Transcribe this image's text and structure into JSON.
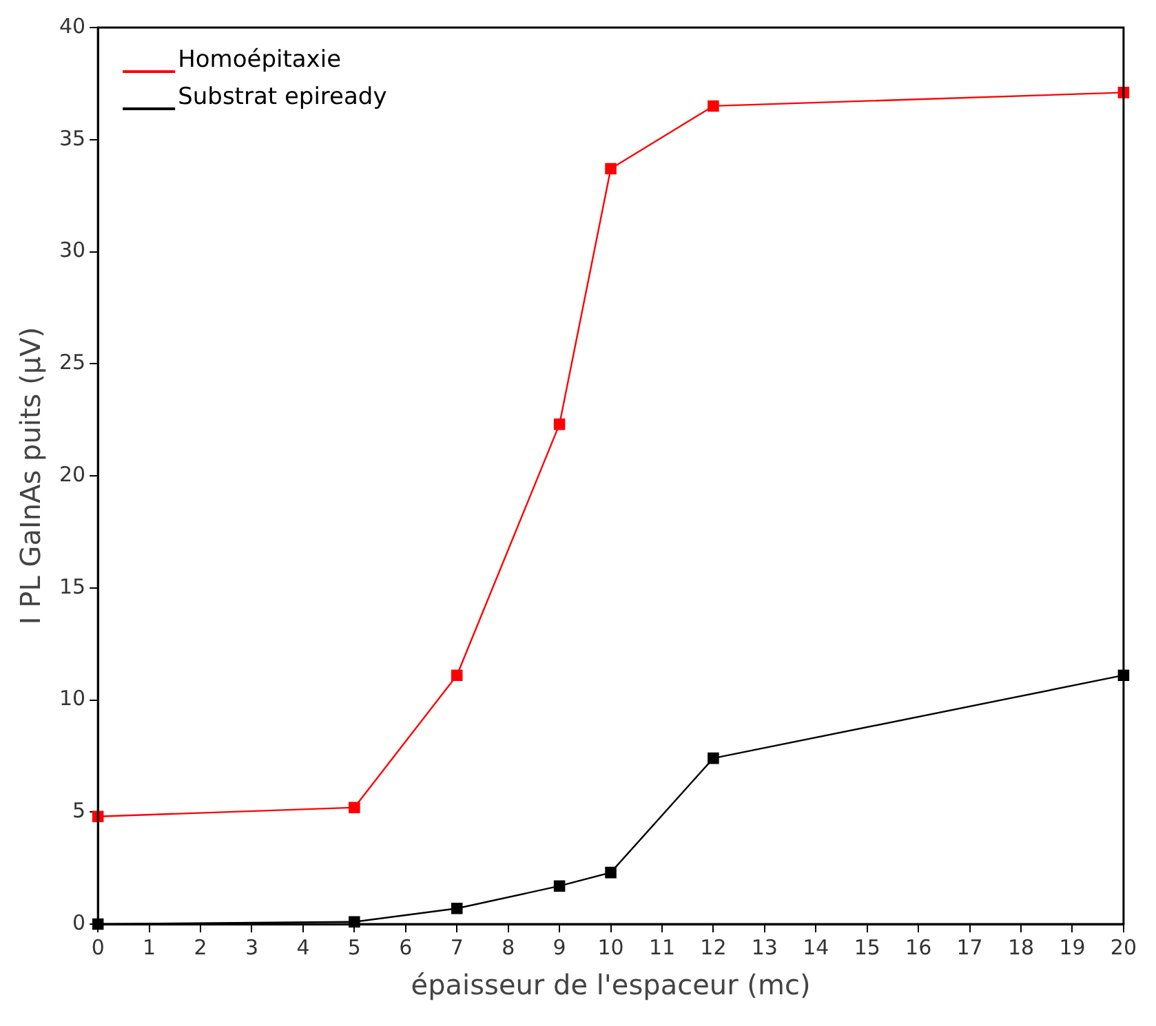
{
  "chart_data": {
    "type": "line",
    "xlabel": "épaisseur de l'espaceur (mc)",
    "ylabel": "I PL GaInAs puits (µV)",
    "x": [
      0,
      5,
      7,
      9,
      10,
      12,
      20
    ],
    "series": [
      {
        "name": "Homoépitaxie",
        "color": "#ff0000",
        "values": [
          4.8,
          5.2,
          11.1,
          22.3,
          33.7,
          36.5,
          37.1
        ]
      },
      {
        "name": "Substrat epiready",
        "color": "#000000",
        "values": [
          0,
          0.1,
          0.7,
          1.7,
          2.3,
          7.4,
          11.1
        ]
      }
    ],
    "xlim": [
      0,
      20
    ],
    "xticks": [
      0,
      1,
      2,
      3,
      4,
      5,
      6,
      7,
      8,
      9,
      10,
      11,
      12,
      13,
      14,
      15,
      16,
      17,
      18,
      19,
      20
    ],
    "ylim": [
      0,
      40
    ],
    "yticks": [
      0,
      5,
      10,
      15,
      20,
      25,
      30,
      35,
      40
    ],
    "grid": false,
    "legend": "top left",
    "marker": "square",
    "line_style": "solid"
  }
}
